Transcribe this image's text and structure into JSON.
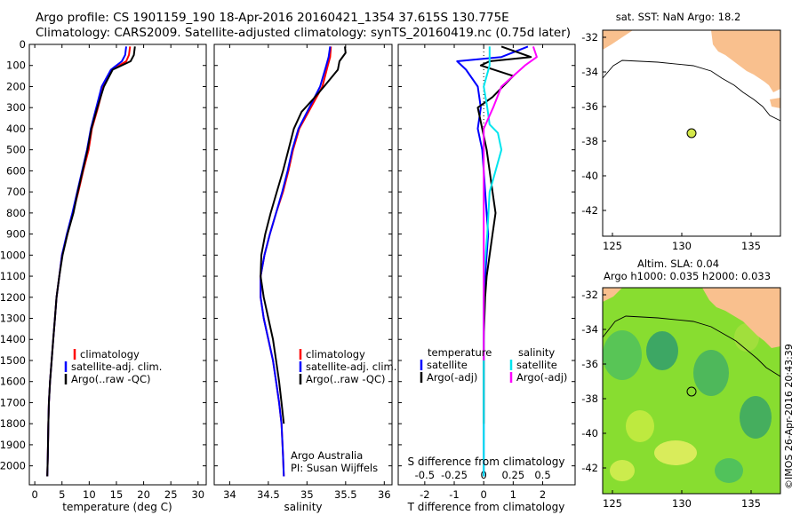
{
  "header": {
    "line1": "Argo profile: CS 1901159_190 18-Apr-2016 20160421_1354 37.615S 130.775E",
    "line2": "Climatology: CARS2009. Satellite-adjusted climatology: synTS_20160419.nc (0.75d later)"
  },
  "credits": {
    "org": "Argo Australia",
    "pi": "PI: Susan Wijffels",
    "imos": "©IMOS 26-Apr-2016 20:43:39"
  },
  "colors": {
    "climatology": "#ff0000",
    "satellite": "#0000ff",
    "argo": "#000000",
    "salinity_sat": "#00e5ee",
    "salinity_argo": "#ff00ff",
    "land": "#f9c08e",
    "map_sst_marker": "#d4e84a"
  },
  "chart_data": [
    {
      "type": "line",
      "id": "temperature",
      "xlabel": "temperature (deg C)",
      "ylabel": "",
      "xlim": [
        -1,
        31.5
      ],
      "ylim": [
        2090,
        0
      ],
      "xticks": [
        0,
        5,
        10,
        15,
        20,
        25,
        30
      ],
      "yticks": [
        0,
        100,
        200,
        300,
        400,
        500,
        600,
        700,
        800,
        900,
        1000,
        1100,
        1200,
        1300,
        1400,
        1500,
        1600,
        1700,
        1800,
        1900,
        2000
      ],
      "legend": [
        "climatology",
        "satellite-adj. clim.",
        "Argo(..raw -QC)"
      ],
      "series": [
        {
          "name": "climatology",
          "x": [
            17.5,
            17.3,
            16.8,
            14.2,
            12.6,
            11.6,
            10.5,
            9.9,
            8.9,
            8.0,
            7.0,
            6.0,
            5.0,
            4.5,
            4.0,
            3.7,
            3.4,
            3.1,
            2.8,
            2.6,
            2.5,
            2.4,
            2.3
          ],
          "y": [
            10,
            50,
            80,
            120,
            200,
            300,
            400,
            500,
            600,
            700,
            800,
            900,
            1000,
            1100,
            1200,
            1300,
            1400,
            1500,
            1600,
            1700,
            1800,
            1950,
            2050
          ]
        },
        {
          "name": "satellite-adj. clim.",
          "x": [
            16.8,
            16.6,
            16.0,
            14.0,
            12.3,
            11.3,
            10.3,
            9.6,
            8.7,
            7.8,
            6.9,
            5.9,
            5.0,
            4.5,
            4.0,
            3.7,
            3.4,
            3.1,
            2.8,
            2.6,
            2.5,
            2.4,
            2.3
          ],
          "y": [
            10,
            50,
            80,
            120,
            200,
            300,
            400,
            500,
            600,
            700,
            800,
            900,
            1000,
            1100,
            1200,
            1300,
            1400,
            1500,
            1600,
            1700,
            1800,
            1950,
            2050
          ]
        },
        {
          "name": "Argo(..raw -QC)",
          "x": [
            18.4,
            18.2,
            17.6,
            14.3,
            12.7,
            11.5,
            10.4,
            9.7,
            8.8,
            7.9,
            7.1,
            6.0,
            5.1,
            4.5,
            4.0,
            3.7,
            3.4,
            3.1,
            2.8,
            2.6,
            2.5,
            2.4,
            2.3
          ],
          "y": [
            10,
            50,
            80,
            120,
            200,
            300,
            400,
            500,
            600,
            700,
            800,
            900,
            1000,
            1100,
            1200,
            1300,
            1400,
            1500,
            1600,
            1700,
            1800,
            1950,
            2050
          ]
        }
      ]
    },
    {
      "type": "line",
      "id": "salinity",
      "xlabel": "salinity",
      "ylabel": "",
      "xlim": [
        33.8,
        36.1
      ],
      "ylim": [
        2090,
        0
      ],
      "xticks": [
        34,
        34.5,
        35,
        35.5,
        36
      ],
      "xtick_labels": [
        "34",
        "34.5",
        "35",
        "35.5",
        "36"
      ],
      "legend": [
        "climatology",
        "satellite-adj. clim.",
        "Argo(..raw -QC)"
      ],
      "series": [
        {
          "name": "climatology",
          "x": [
            35.31,
            35.3,
            35.27,
            35.2,
            35.05,
            34.9,
            34.82,
            34.76,
            34.69,
            34.6,
            34.52,
            34.45,
            34.4,
            34.4,
            34.44,
            34.5,
            34.56,
            34.6,
            34.64,
            34.67,
            34.69,
            34.7
          ],
          "y": [
            10,
            60,
            100,
            200,
            300,
            400,
            500,
            600,
            700,
            800,
            900,
            1000,
            1100,
            1200,
            1300,
            1400,
            1500,
            1600,
            1700,
            1800,
            1950,
            2050
          ]
        },
        {
          "name": "satellite-adj. clim.",
          "x": [
            35.3,
            35.28,
            35.25,
            35.17,
            35.03,
            34.89,
            34.81,
            34.75,
            34.68,
            34.6,
            34.52,
            34.45,
            34.4,
            34.4,
            34.44,
            34.5,
            34.56,
            34.6,
            34.64,
            34.67,
            34.69,
            34.7
          ],
          "y": [
            10,
            60,
            100,
            200,
            300,
            400,
            500,
            600,
            700,
            800,
            900,
            1000,
            1100,
            1200,
            1300,
            1400,
            1500,
            1600,
            1700,
            1800,
            1950,
            2050
          ]
        },
        {
          "name": "Argo(..raw -QC)",
          "x": [
            35.49,
            35.5,
            35.42,
            35.4,
            35.22,
            35.08,
            34.93,
            34.83,
            34.76,
            34.69,
            34.61,
            34.53,
            34.46,
            34.41,
            34.4,
            34.44,
            34.5,
            34.56,
            34.6,
            34.64,
            34.67,
            34.7
          ],
          "y": [
            10,
            40,
            80,
            120,
            200,
            260,
            320,
            400,
            500,
            600,
            700,
            800,
            900,
            1000,
            1100,
            1200,
            1300,
            1400,
            1500,
            1600,
            1700,
            1800
          ]
        }
      ]
    },
    {
      "type": "line",
      "id": "difference",
      "xlabel": "T difference from climatology",
      "x2label": "S difference from climatology",
      "xlim": [
        -2.9,
        3.1
      ],
      "ylim": [
        2090,
        0
      ],
      "xticks": [
        -2,
        -1,
        0,
        1,
        2
      ],
      "x2ticks": [
        -0.5,
        -0.25,
        0,
        0.25,
        0.5
      ],
      "x2tick_labels": [
        "-0.5",
        "-0.25",
        "0",
        "0.25",
        "0.5"
      ],
      "legend_headers": [
        "temperature",
        "salinity"
      ],
      "legend": [
        "satellite",
        "Argo(-adj)",
        "satellite",
        "Argo(-adj)"
      ],
      "series": [
        {
          "name": "satellite",
          "x": [
            1.5,
            0.6,
            -0.9,
            -0.6,
            -0.2,
            -0.1,
            -0.2,
            -0.05,
            0,
            0.05,
            0.1,
            0.15,
            0.1,
            0.05,
            0,
            0,
            0,
            0,
            0,
            0
          ],
          "y": [
            10,
            60,
            80,
            120,
            200,
            300,
            400,
            500,
            600,
            700,
            800,
            900,
            1000,
            1100,
            1200,
            1400,
            1600,
            1800,
            1950,
            2050
          ]
        },
        {
          "name": "Argo(-adj)",
          "x": [
            0.6,
            1.6,
            0.2,
            -0.1,
            1.0,
            0.3,
            -0.2,
            0.1,
            0.2,
            0.3,
            0.4,
            0.3,
            0.2,
            0.1,
            0.05,
            0,
            0,
            0
          ],
          "y": [
            10,
            60,
            80,
            100,
            150,
            250,
            300,
            500,
            600,
            700,
            800,
            900,
            1000,
            1100,
            1200,
            1400,
            1600,
            1800
          ]
        },
        {
          "name": "satellite",
          "x": [
            0.05,
            0.05,
            0,
            0.03,
            0.05,
            0.12,
            0.15,
            0.1,
            0.05,
            0.03,
            0,
            0,
            0,
            0,
            0
          ],
          "y": [
            10,
            100,
            200,
            300,
            380,
            420,
            500,
            600,
            700,
            900,
            1100,
            1300,
            1600,
            1900,
            2050
          ]
        },
        {
          "name": "Argo(-adj)",
          "x": [
            0.42,
            0.45,
            0.35,
            0.15,
            0.08,
            0,
            0,
            0,
            0
          ],
          "y": [
            10,
            60,
            100,
            200,
            300,
            400,
            500,
            800,
            1500
          ]
        }
      ]
    }
  ],
  "map_top": {
    "title": "sat. SST: NaN Argo: 18.2",
    "xticks": [
      "125",
      "130",
      "135"
    ],
    "yticks": [
      "-32",
      "-34",
      "-36",
      "-38",
      "-40",
      "-42"
    ]
  },
  "map_bottom": {
    "title1": "Altim. SLA: 0.04",
    "title2": "Argo h1000: 0.035 h2000: 0.033",
    "xticks": [
      "125",
      "130",
      "135"
    ],
    "yticks": [
      "-32",
      "-34",
      "-36",
      "-38",
      "-40",
      "-42"
    ]
  }
}
